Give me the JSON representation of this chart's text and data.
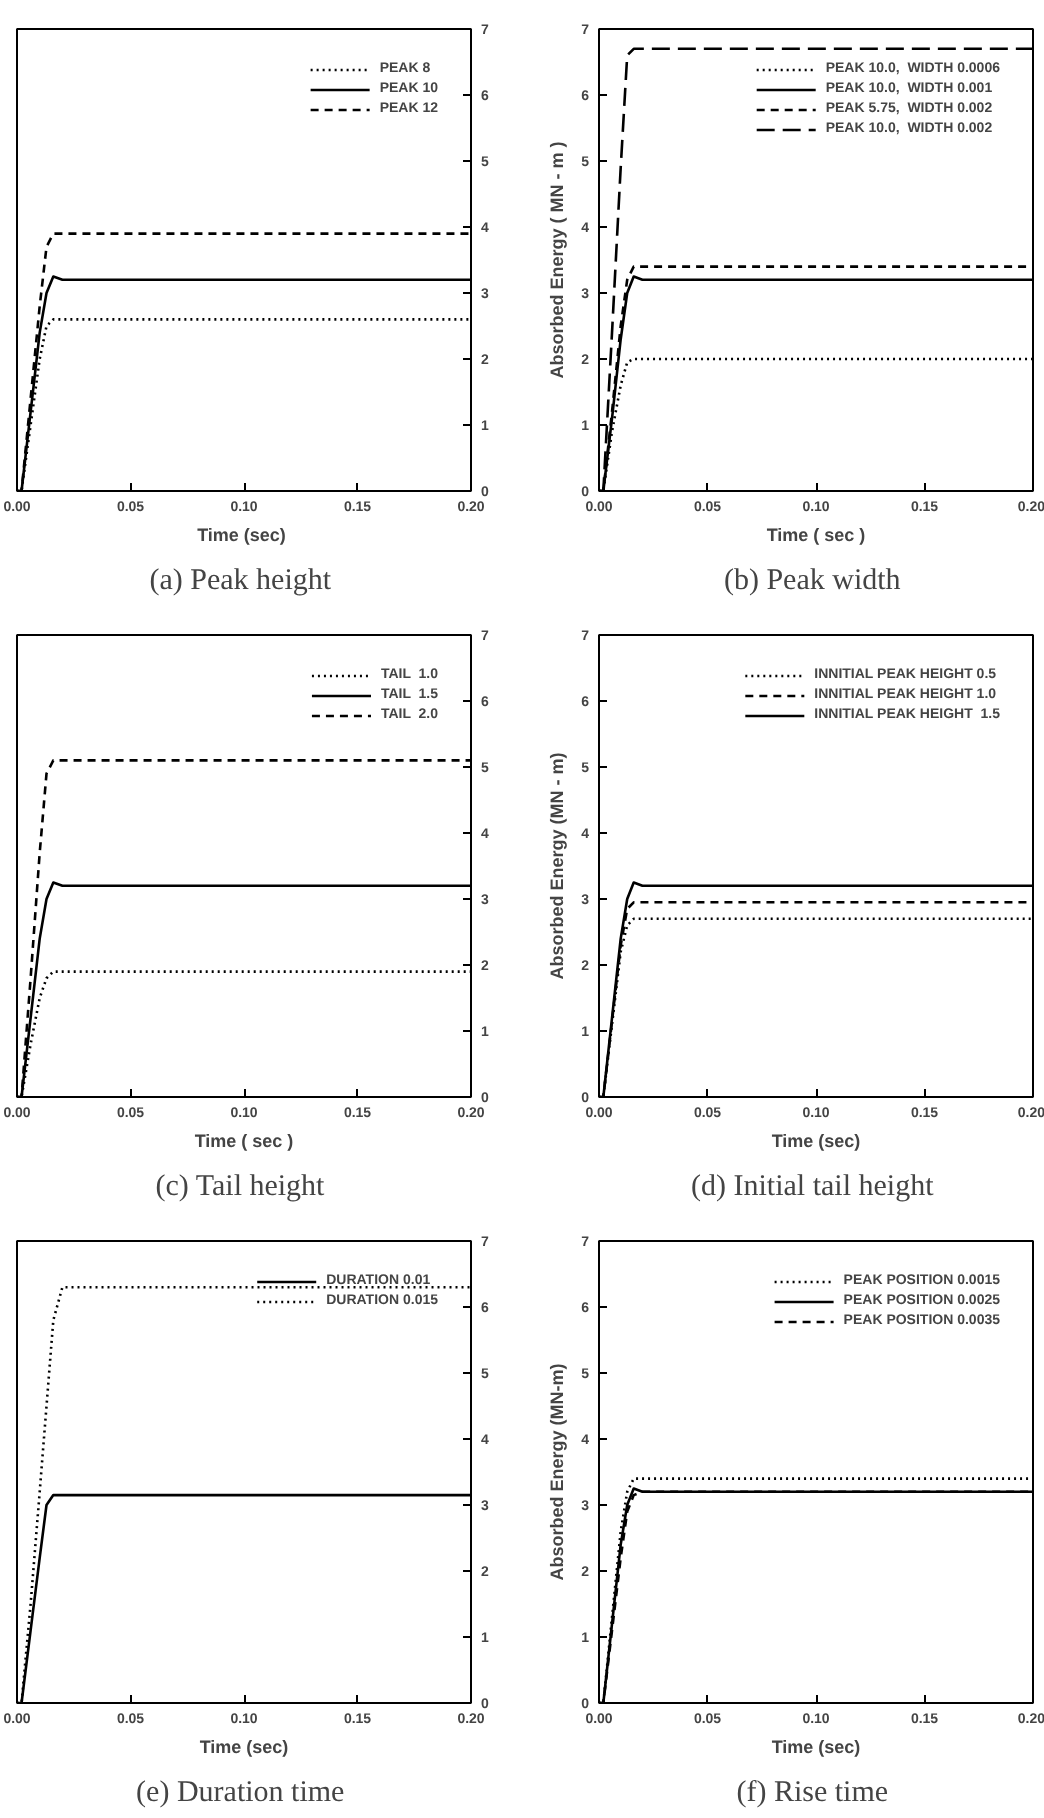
{
  "chart_data": [
    {
      "type": "line",
      "title": "(a)  Peak height",
      "xlabel": "Time  (sec)",
      "x": [
        0,
        0.002,
        0.006,
        0.01,
        0.013,
        0.016,
        0.02,
        0.05,
        0.1,
        0.15,
        0.2
      ],
      "xlim": [
        0,
        0.2
      ],
      "xticks": [
        {
          "value": 0,
          "label": "0.00"
        },
        {
          "value": 0.05,
          "label": "0.05"
        },
        {
          "value": 0.1,
          "label": "0.10"
        },
        {
          "value": 0.15,
          "label": "0.15"
        },
        {
          "value": 0.2,
          "label": "0.20"
        }
      ],
      "y2lim": [
        0,
        7
      ],
      "y2ticks": [
        0,
        1,
        2,
        3,
        4,
        5,
        6,
        7
      ],
      "grid": false,
      "legend": "top right",
      "series": [
        {
          "name": "PEAK 8",
          "color": "#000000",
          "line_style": "dotted",
          "axis": "y2",
          "values": [
            0,
            0,
            1.0,
            2.0,
            2.5,
            2.6,
            2.6,
            2.6,
            2.6,
            2.6,
            2.6
          ]
        },
        {
          "name": "PEAK 10",
          "color": "#000000",
          "line_style": "solid",
          "axis": "y2",
          "values": [
            0,
            0,
            1.2,
            2.4,
            3.0,
            3.25,
            3.2,
            3.2,
            3.2,
            3.2,
            3.2
          ]
        },
        {
          "name": "PEAK 12",
          "color": "#000000",
          "line_style": "dashed",
          "axis": "y2",
          "values": [
            0,
            0,
            1.4,
            2.8,
            3.7,
            3.9,
            3.9,
            3.9,
            3.9,
            3.9,
            3.9
          ]
        }
      ]
    },
    {
      "type": "line",
      "title": "(b)  Peak width",
      "xlabel": "Time ( sec )",
      "ylabel": "Absorbed Energy ( MN - m )",
      "x": [
        0,
        0.002,
        0.006,
        0.01,
        0.013,
        0.016,
        0.02,
        0.05,
        0.1,
        0.15,
        0.2
      ],
      "xlim": [
        0,
        0.2
      ],
      "xticks": [
        {
          "value": 0,
          "label": "0.00"
        },
        {
          "value": 0.05,
          "label": "0.05"
        },
        {
          "value": 0.1,
          "label": "0.10"
        },
        {
          "value": 0.15,
          "label": "0.15"
        },
        {
          "value": 0.2,
          "label": "0.20"
        }
      ],
      "ylim": [
        0,
        7
      ],
      "yticks": [
        0,
        1,
        2,
        3,
        4,
        5,
        6,
        7
      ],
      "grid": false,
      "legend": "top right",
      "series": [
        {
          "name": "PEAK 10.0,  WIDTH 0.0006",
          "color": "#000000",
          "line_style": "dotted",
          "values": [
            0,
            0,
            0.9,
            1.6,
            1.95,
            2.0,
            2.0,
            2.0,
            2.0,
            2.0,
            2.0
          ]
        },
        {
          "name": "PEAK 10.0,  WIDTH 0.001",
          "color": "#000000",
          "line_style": "solid",
          "values": [
            0,
            0,
            1.1,
            2.3,
            3.0,
            3.25,
            3.2,
            3.2,
            3.2,
            3.2,
            3.2
          ]
        },
        {
          "name": "PEAK 5.75,  WIDTH 0.002",
          "color": "#000000",
          "line_style": "dashed",
          "values": [
            0,
            0,
            1.2,
            2.5,
            3.2,
            3.4,
            3.4,
            3.4,
            3.4,
            3.4,
            3.4
          ]
        },
        {
          "name": "PEAK 10.0,  WIDTH 0.002",
          "color": "#000000",
          "line_style": "longdashed",
          "values": [
            0,
            0,
            2.4,
            4.9,
            6.6,
            6.7,
            6.7,
            6.7,
            6.7,
            6.7,
            6.7
          ]
        }
      ]
    },
    {
      "type": "line",
      "title": "(c)  Tail height",
      "xlabel": "Time ( sec )",
      "x": [
        0,
        0.002,
        0.006,
        0.01,
        0.013,
        0.016,
        0.02,
        0.05,
        0.1,
        0.15,
        0.2
      ],
      "xlim": [
        0,
        0.2
      ],
      "xticks": [
        {
          "value": 0,
          "label": "0.00"
        },
        {
          "value": 0.05,
          "label": "0.05"
        },
        {
          "value": 0.1,
          "label": "0.10"
        },
        {
          "value": 0.15,
          "label": "0.15"
        },
        {
          "value": 0.2,
          "label": "0.20"
        }
      ],
      "y2lim": [
        0,
        7
      ],
      "y2ticks": [
        0,
        1,
        2,
        3,
        4,
        5,
        6,
        7
      ],
      "grid": false,
      "legend": "top right",
      "series": [
        {
          "name": "TAIL  1.0",
          "color": "#000000",
          "line_style": "dotted",
          "axis": "y2",
          "values": [
            0,
            0,
            0.8,
            1.5,
            1.8,
            1.9,
            1.9,
            1.9,
            1.9,
            1.9,
            1.9
          ]
        },
        {
          "name": "TAIL  1.5",
          "color": "#000000",
          "line_style": "solid",
          "axis": "y2",
          "values": [
            0,
            0,
            1.2,
            2.4,
            3.0,
            3.25,
            3.2,
            3.2,
            3.2,
            3.2,
            3.2
          ]
        },
        {
          "name": "TAIL  2.0",
          "color": "#000000",
          "line_style": "dashed",
          "axis": "y2",
          "values": [
            0,
            0,
            1.8,
            3.7,
            4.9,
            5.1,
            5.1,
            5.1,
            5.1,
            5.1,
            5.1
          ]
        }
      ]
    },
    {
      "type": "line",
      "title": "(d)  Initial tail height",
      "xlabel": "Time (sec)",
      "ylabel": "Absorbed Energy (MN - m)",
      "x": [
        0,
        0.002,
        0.006,
        0.01,
        0.013,
        0.016,
        0.02,
        0.05,
        0.1,
        0.15,
        0.2
      ],
      "xlim": [
        0,
        0.2
      ],
      "xticks": [
        {
          "value": 0,
          "label": "0.00"
        },
        {
          "value": 0.05,
          "label": "0.05"
        },
        {
          "value": 0.1,
          "label": "0.10"
        },
        {
          "value": 0.15,
          "label": "0.15"
        },
        {
          "value": 0.2,
          "label": "0.20"
        }
      ],
      "ylim": [
        0,
        7
      ],
      "yticks": [
        0,
        1,
        2,
        3,
        4,
        5,
        6,
        7
      ],
      "grid": false,
      "legend": "top right",
      "series": [
        {
          "name": "INNITIAL PEAK HEIGHT 0.5",
          "color": "#000000",
          "line_style": "dotted",
          "values": [
            0,
            0,
            1.1,
            2.2,
            2.6,
            2.7,
            2.7,
            2.7,
            2.7,
            2.7,
            2.7
          ]
        },
        {
          "name": "INNITIAL PEAK HEIGHT 1.0",
          "color": "#000000",
          "line_style": "dashed",
          "values": [
            0,
            0,
            1.15,
            2.3,
            2.85,
            2.95,
            2.95,
            2.95,
            2.95,
            2.95,
            2.95
          ]
        },
        {
          "name": "INNITIAL PEAK HEIGHT  1.5",
          "color": "#000000",
          "line_style": "solid",
          "values": [
            0,
            0,
            1.2,
            2.4,
            3.0,
            3.25,
            3.2,
            3.2,
            3.2,
            3.2,
            3.2
          ]
        }
      ]
    },
    {
      "type": "line",
      "title": "(e)  Duration time",
      "xlabel": "Time (sec)",
      "x": [
        0,
        0.002,
        0.006,
        0.01,
        0.013,
        0.016,
        0.02,
        0.05,
        0.1,
        0.15,
        0.2
      ],
      "xlim": [
        0,
        0.2
      ],
      "xticks": [
        {
          "value": 0,
          "label": "0.00"
        },
        {
          "value": 0.05,
          "label": "0.05"
        },
        {
          "value": 0.1,
          "label": "0.10"
        },
        {
          "value": 0.15,
          "label": "0.15"
        },
        {
          "value": 0.2,
          "label": "0.20"
        }
      ],
      "y2lim": [
        0,
        7
      ],
      "y2ticks": [
        0,
        1,
        2,
        3,
        4,
        5,
        6,
        7
      ],
      "grid": false,
      "legend": "top right",
      "series": [
        {
          "name": "DURATION 0.01",
          "color": "#000000",
          "line_style": "solid",
          "axis": "y2",
          "values": [
            0,
            0,
            1.1,
            2.2,
            3.0,
            3.15,
            3.15,
            3.15,
            3.15,
            3.15,
            3.15
          ]
        },
        {
          "name": "DURATION 0.015",
          "color": "#000000",
          "line_style": "dotted",
          "axis": "y2",
          "values": [
            0,
            0,
            1.5,
            3.2,
            4.5,
            5.8,
            6.3,
            6.3,
            6.3,
            6.3,
            6.3
          ]
        }
      ]
    },
    {
      "type": "line",
      "title": "(f)  Rise time",
      "xlabel": "Time (sec)",
      "ylabel": "Absorbed Energy (MN-m)",
      "x": [
        0,
        0.002,
        0.006,
        0.01,
        0.013,
        0.016,
        0.02,
        0.05,
        0.1,
        0.15,
        0.2
      ],
      "xlim": [
        0,
        0.2
      ],
      "xticks": [
        {
          "value": 0,
          "label": "0.00"
        },
        {
          "value": 0.05,
          "label": "0.05"
        },
        {
          "value": 0.1,
          "label": "0.10"
        },
        {
          "value": 0.15,
          "label": "0.15"
        },
        {
          "value": 0.2,
          "label": "0.20"
        }
      ],
      "ylim": [
        0,
        7
      ],
      "yticks": [
        0,
        1,
        2,
        3,
        4,
        5,
        6,
        7
      ],
      "grid": false,
      "legend": "top right",
      "series": [
        {
          "name": "PEAK POSITION 0.0015",
          "color": "#000000",
          "line_style": "dotted",
          "values": [
            0,
            0,
            1.3,
            2.6,
            3.2,
            3.4,
            3.4,
            3.4,
            3.4,
            3.4,
            3.4
          ]
        },
        {
          "name": "PEAK POSITION 0.0025",
          "color": "#000000",
          "line_style": "solid",
          "values": [
            0,
            0,
            1.2,
            2.4,
            3.0,
            3.25,
            3.2,
            3.2,
            3.2,
            3.2,
            3.2
          ]
        },
        {
          "name": "PEAK POSITION 0.0035",
          "color": "#000000",
          "line_style": "dashed",
          "values": [
            0,
            0,
            1.1,
            2.2,
            2.9,
            3.15,
            3.2,
            3.2,
            3.2,
            3.2,
            3.2
          ]
        }
      ]
    }
  ]
}
